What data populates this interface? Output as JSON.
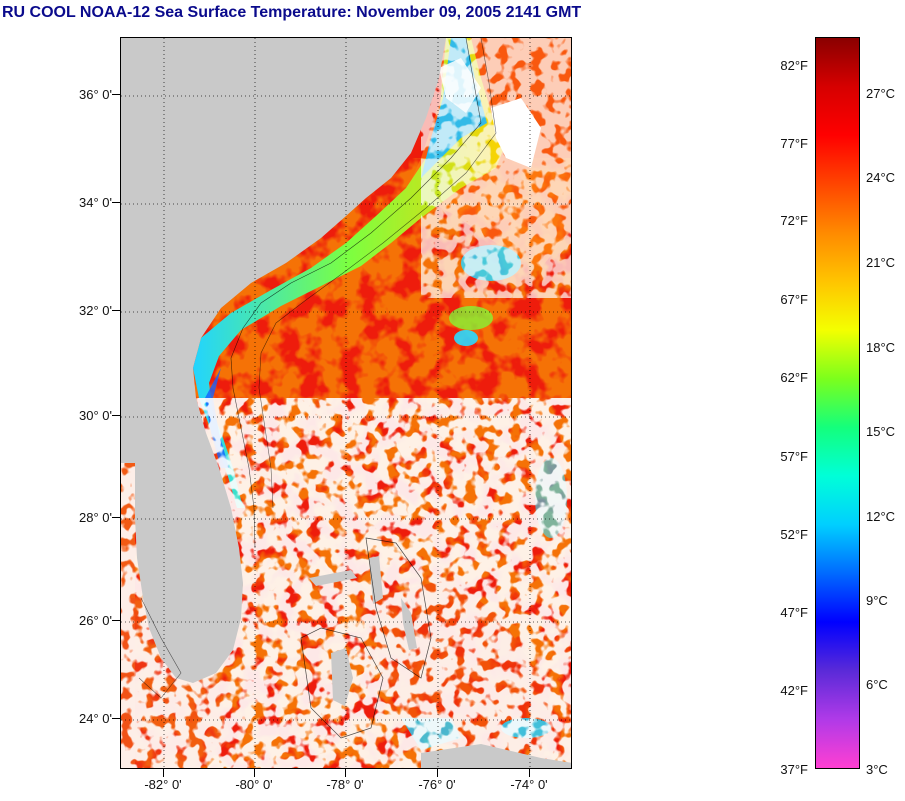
{
  "title": "RU COOL  NOAA-12  Sea Surface Temperature:  November 09, 2005 2141 GMT",
  "map": {
    "latitude_labels": [
      "36° 0'",
      "34° 0'",
      "32° 0'",
      "30° 0'",
      "28° 0'",
      "26° 0'",
      "24° 0'"
    ],
    "longitude_labels": [
      "-82° 0'",
      "-80° 0'",
      "-78° 0'",
      "-76° 0'",
      "-74° 0'"
    ],
    "grid": "dotted",
    "colors": {
      "land": "#c9c9c9",
      "cloud": "#ffffff",
      "warm_ocean": "#ee1c0c",
      "cool_shelf": "#22d4ff",
      "coastline": "#000000"
    }
  },
  "colorbar": {
    "fahrenheit_labels": [
      "82°F",
      "77°F",
      "72°F",
      "67°F",
      "62°F",
      "57°F",
      "52°F",
      "47°F",
      "42°F",
      "37°F"
    ],
    "celsius_labels": [
      "27°C",
      "24°C",
      "21°C",
      "18°C",
      "15°C",
      "12°C",
      "9°C",
      "6°C",
      "3°C"
    ],
    "stops": [
      "#ff3fd2",
      "#b03ae8",
      "#5a2ad8",
      "#0000ff",
      "#006aff",
      "#00cfff",
      "#00ffd8",
      "#14ff7c",
      "#7cff1c",
      "#f4ff00",
      "#ffc400",
      "#ff8a00",
      "#ff4500",
      "#ff0000",
      "#d60000",
      "#8a0000"
    ]
  }
}
